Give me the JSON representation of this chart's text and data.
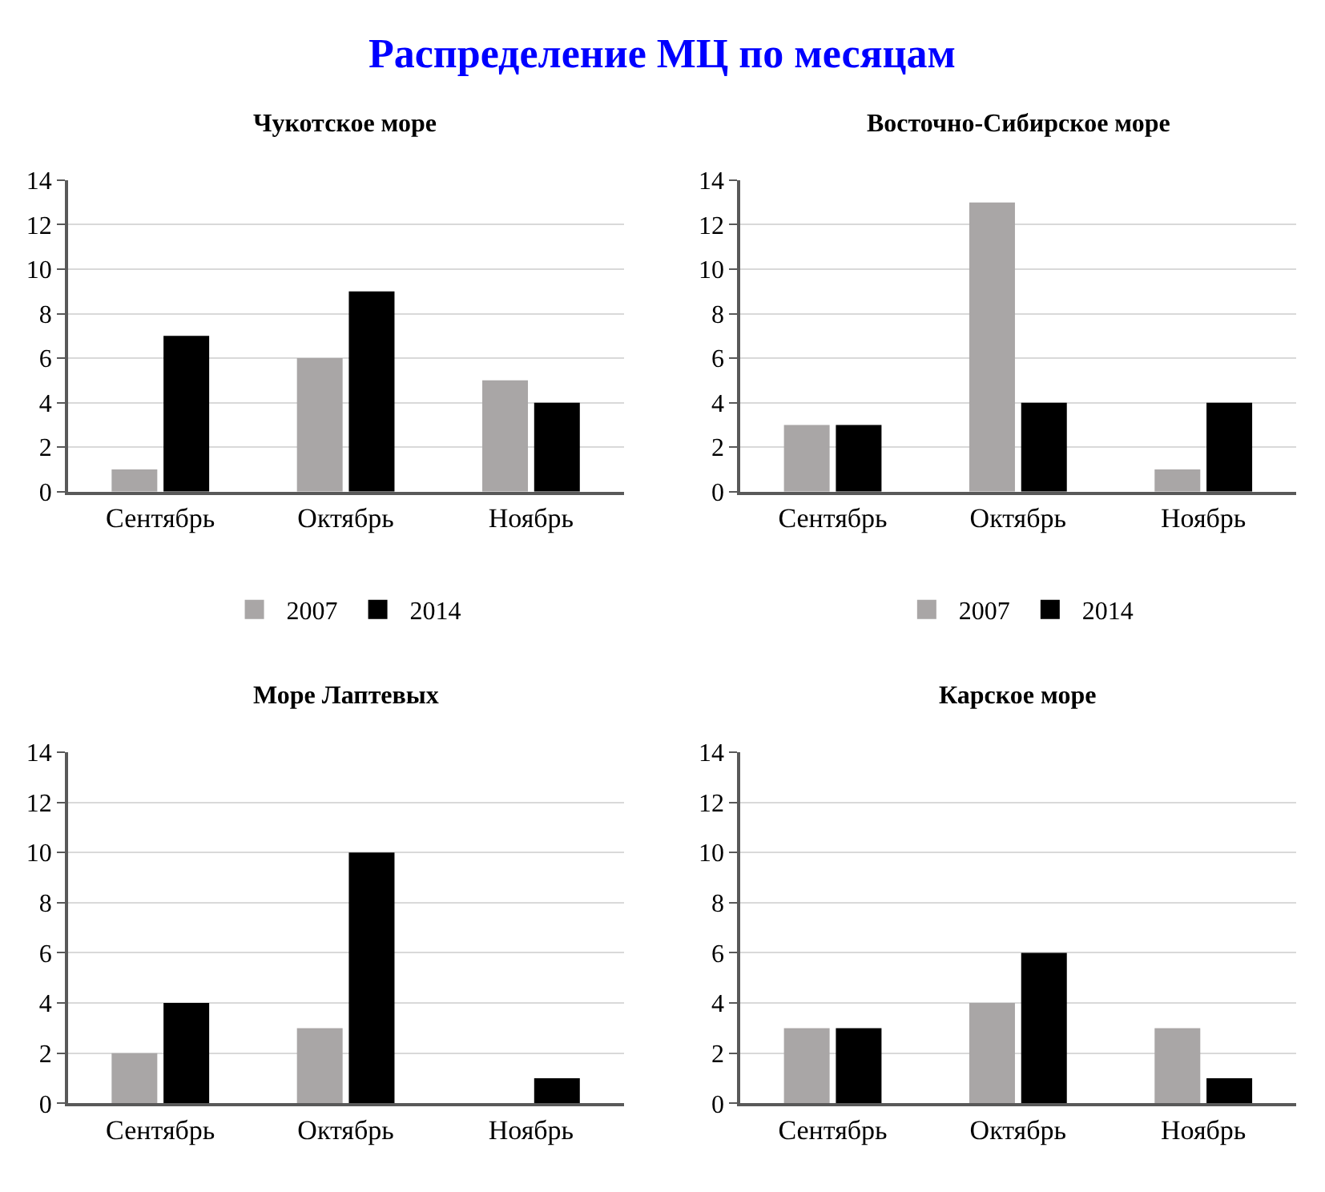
{
  "chart_data": [
    {
      "type": "other",
      "title": "Распределение МЦ по месяцам"
    },
    {
      "type": "bar",
      "title": "Чукотское море",
      "categories": [
        "Сентябрь",
        "Октябрь",
        "Ноябрь"
      ],
      "series": [
        {
          "name": "2007",
          "color": "#a9a6a6",
          "values": [
            1,
            6,
            5
          ]
        },
        {
          "name": "2014",
          "color": "#000000",
          "values": [
            7,
            9,
            4
          ]
        }
      ],
      "ylim": [
        0,
        14
      ],
      "yticks": [
        0,
        2,
        4,
        6,
        8,
        10,
        12,
        14
      ],
      "grid": "y",
      "legend": "bottom"
    },
    {
      "type": "bar",
      "title": "Восточно-Сибирское море",
      "categories": [
        "Сентябрь",
        "Октябрь",
        "Ноябрь"
      ],
      "series": [
        {
          "name": "2007",
          "color": "#a9a6a6",
          "values": [
            3,
            13,
            1
          ]
        },
        {
          "name": "2014",
          "color": "#000000",
          "values": [
            3,
            4,
            4
          ]
        }
      ],
      "ylim": [
        0,
        14
      ],
      "yticks": [
        0,
        2,
        4,
        6,
        8,
        10,
        12,
        14
      ],
      "grid": "y",
      "legend": "bottom"
    },
    {
      "type": "bar",
      "title": "Море Лаптевых",
      "categories": [
        "Сентябрь",
        "Октябрь",
        "Ноябрь"
      ],
      "series": [
        {
          "color": "#a9a6a6",
          "values": [
            2,
            3,
            0
          ]
        },
        {
          "color": "#000000",
          "values": [
            4,
            10,
            1
          ]
        }
      ],
      "ylim": [
        0,
        14
      ],
      "yticks": [
        0,
        2,
        4,
        6,
        8,
        10,
        12,
        14
      ],
      "grid": "y"
    },
    {
      "type": "bar",
      "title": "Карское море",
      "categories": [
        "Сентябрь",
        "Октябрь",
        "Ноябрь"
      ],
      "series": [
        {
          "color": "#a9a6a6",
          "values": [
            3,
            4,
            3
          ]
        },
        {
          "color": "#000000",
          "values": [
            3,
            6,
            1
          ]
        }
      ],
      "ylim": [
        0,
        14
      ],
      "yticks": [
        0,
        2,
        4,
        6,
        8,
        10,
        12,
        14
      ],
      "grid": "y"
    }
  ]
}
